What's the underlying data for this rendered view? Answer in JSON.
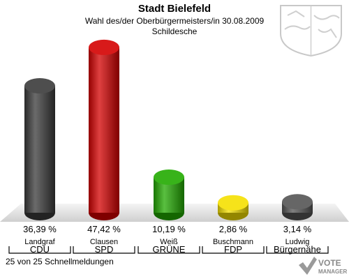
{
  "header": {
    "title": "Stadt Bielefeld",
    "subtitle1": "Wahl des/der Oberbürgermeisters/in 30.08.2009",
    "subtitle2": "Schildesche"
  },
  "footer": {
    "note": "25 von 25 Schnellmeldungen",
    "brand_line1": "VOTE",
    "brand_line2": "MANAGER"
  },
  "chart_data": {
    "type": "bar",
    "title": "Stadt Bielefeld",
    "categories": [
      "CDU",
      "SPD",
      "GRÜNE",
      "FDP",
      "Bürgernähe"
    ],
    "candidates": [
      "Landgraf",
      "Clausen",
      "Weiß",
      "Buschmann",
      "Ludwig"
    ],
    "values": [
      36.39,
      47.42,
      10.19,
      2.86,
      3.14
    ],
    "value_labels": [
      "36,39 %",
      "47,42 %",
      "10,19 %",
      "2,86 %",
      "3,14 %"
    ],
    "colors": [
      "#3a3a3a",
      "#d40000",
      "#22aa00",
      "#f5e000",
      "#555555"
    ],
    "ylim": [
      0,
      50
    ],
    "grid": false,
    "legend": "none"
  }
}
